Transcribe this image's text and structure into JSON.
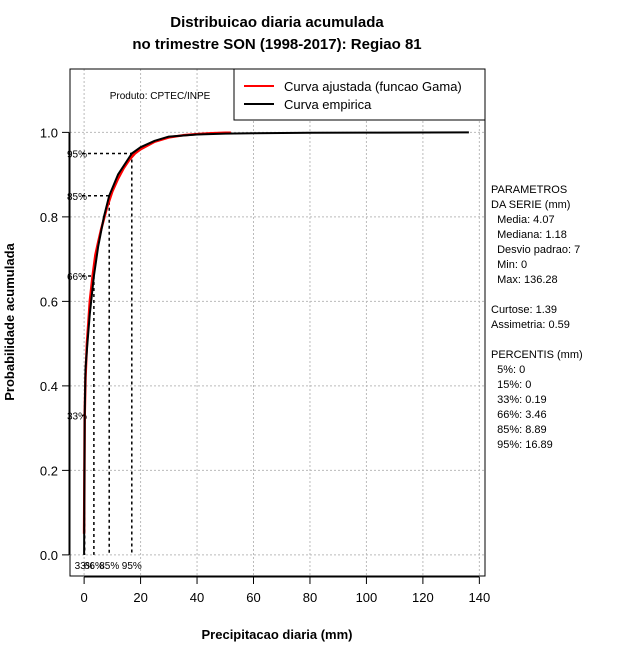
{
  "chart_data": {
    "type": "line",
    "title": [
      "Distribuicao diaria acumulada",
      "no trimestre SON (1998-2017): Regiao 81"
    ],
    "xlabel": "Precipitacao diaria (mm)",
    "ylabel": "Probabilidade acumulada",
    "xlim": [
      -5,
      142
    ],
    "ylim": [
      -0.05,
      1.15
    ],
    "x_ticks": [
      0,
      20,
      40,
      60,
      80,
      100,
      120,
      140
    ],
    "y_ticks": [
      0.0,
      0.2,
      0.4,
      0.6,
      0.8,
      1.0
    ],
    "x_tick_labels": [
      "0",
      "20",
      "40",
      "60",
      "80",
      "100",
      "120",
      "140"
    ],
    "y_tick_labels": [
      "0.0",
      "0.2",
      "0.4",
      "0.6",
      "0.8",
      "1.0"
    ],
    "grid": true,
    "credit": "Produto: CPTEC/INPE",
    "legend": {
      "position": "top-right",
      "entries": [
        {
          "name": "Curva ajustada (funcao Gama)",
          "color": "#ff0000"
        },
        {
          "name": "Curva empirica",
          "color": "#000000"
        }
      ]
    },
    "series": [
      {
        "name": "Curva ajustada (funcao Gama)",
        "color": "#ff0000",
        "x": [
          0,
          0.2,
          0.5,
          1,
          1.5,
          2,
          3,
          4,
          5,
          6,
          8,
          10,
          12,
          14,
          16,
          18,
          20,
          25,
          30,
          35,
          40,
          45,
          50,
          52
        ],
        "y": [
          0.05,
          0.33,
          0.42,
          0.5,
          0.55,
          0.6,
          0.66,
          0.71,
          0.74,
          0.77,
          0.82,
          0.86,
          0.89,
          0.915,
          0.935,
          0.95,
          0.96,
          0.978,
          0.988,
          0.993,
          0.996,
          0.998,
          0.999,
          0.999
        ]
      },
      {
        "name": "Curva empirica",
        "color": "#000000",
        "x": [
          0,
          0.19,
          0.5,
          1.18,
          2,
          3.46,
          5,
          7,
          8.89,
          12,
          16.89,
          20,
          25,
          30,
          40,
          50,
          60,
          80,
          100,
          136.28
        ],
        "y": [
          0.0,
          0.33,
          0.44,
          0.5,
          0.57,
          0.66,
          0.73,
          0.8,
          0.85,
          0.9,
          0.95,
          0.965,
          0.98,
          0.99,
          0.995,
          0.997,
          0.998,
          0.999,
          0.9995,
          1.0
        ]
      }
    ],
    "percentile_markers": [
      {
        "label": "33%",
        "p": 0.33,
        "x": 0.19
      },
      {
        "label": "66%",
        "p": 0.66,
        "x": 3.46
      },
      {
        "label": "85%",
        "p": 0.85,
        "x": 8.89
      },
      {
        "label": "95%",
        "p": 0.95,
        "x": 16.89
      }
    ],
    "stats_text": [
      "PARAMETROS",
      "DA SERIE (mm)",
      "  Media: 4.07",
      "  Mediana: 1.18",
      "  Desvio padrao: 7",
      "  Min: 0",
      "  Max: 136.28",
      "",
      "Curtose: 1.39",
      "Assimetria: 0.59",
      "",
      "PERCENTIS (mm)",
      "  5%: 0",
      "  15%: 0",
      "  33%: 0.19",
      "  66%: 3.46",
      "  85%: 8.89",
      "  95%: 16.89"
    ]
  }
}
